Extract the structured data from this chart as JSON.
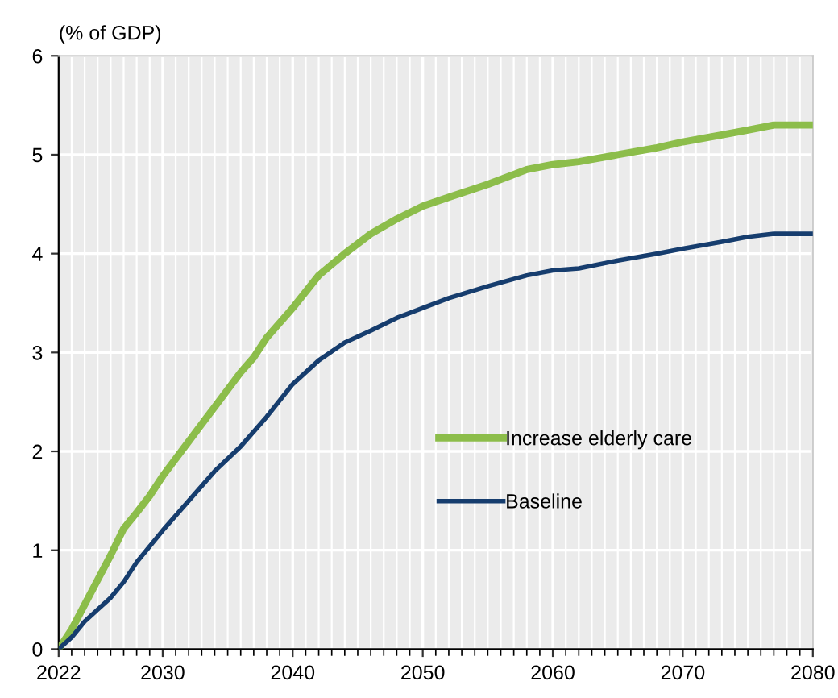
{
  "chart_data": {
    "type": "line",
    "ylabel": "(% of GDP)",
    "xlim": [
      2022,
      2080
    ],
    "xticks": [
      2022,
      2030,
      2040,
      2050,
      2060,
      2070,
      2080
    ],
    "ylim": [
      0,
      6
    ],
    "yticks": [
      0,
      1,
      2,
      3,
      4,
      5,
      6
    ],
    "grid": true,
    "legend": "right",
    "marker": "none",
    "line_style": "solid",
    "series": [
      {
        "name": "Increase elderly care",
        "color": "#8cbd4a",
        "x": [
          2022,
          2023,
          2024,
          2025,
          2026,
          2027,
          2028,
          2029,
          2030,
          2032,
          2034,
          2036,
          2037,
          2038,
          2040,
          2042,
          2044,
          2046,
          2048,
          2050,
          2052,
          2055,
          2058,
          2060,
          2062,
          2065,
          2068,
          2070,
          2073,
          2075,
          2077,
          2080
        ],
        "values": [
          0,
          0.2,
          0.45,
          0.7,
          0.95,
          1.22,
          1.38,
          1.55,
          1.75,
          2.1,
          2.45,
          2.8,
          2.95,
          3.15,
          3.45,
          3.78,
          4.0,
          4.2,
          4.35,
          4.48,
          4.57,
          4.7,
          4.85,
          4.9,
          4.93,
          5.0,
          5.07,
          5.13,
          5.2,
          5.25,
          5.3,
          5.3
        ]
      },
      {
        "name": "Baseline",
        "color": "#163d6e",
        "x": [
          2022,
          2023,
          2024,
          2025,
          2026,
          2027,
          2028,
          2030,
          2032,
          2034,
          2036,
          2038,
          2040,
          2042,
          2044,
          2046,
          2048,
          2050,
          2052,
          2055,
          2058,
          2060,
          2062,
          2065,
          2068,
          2070,
          2073,
          2075,
          2077,
          2080
        ],
        "values": [
          0,
          0.12,
          0.28,
          0.4,
          0.52,
          0.68,
          0.88,
          1.2,
          1.5,
          1.8,
          2.05,
          2.35,
          2.68,
          2.92,
          3.1,
          3.22,
          3.35,
          3.45,
          3.55,
          3.67,
          3.78,
          3.83,
          3.85,
          3.93,
          4.0,
          4.05,
          4.12,
          4.17,
          4.2,
          4.2
        ]
      }
    ]
  }
}
